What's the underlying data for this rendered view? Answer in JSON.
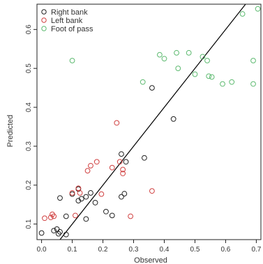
{
  "chart_data": {
    "type": "scatter",
    "xlabel": "Observed",
    "ylabel": "Predicted",
    "xlim": [
      -0.015,
      0.715
    ],
    "ylim": [
      0.06,
      0.665
    ],
    "x_ticks": [
      "0.0",
      "0.1",
      "0.2",
      "0.3",
      "0.4",
      "0.5",
      "0.6",
      "0.7"
    ],
    "y_ticks": [
      "0.1",
      "0.2",
      "0.3",
      "0.4",
      "0.5",
      "0.6"
    ],
    "grid": false,
    "legend_position": "top-left",
    "reference_line": {
      "type": "identity",
      "color": "#000000"
    },
    "series": [
      {
        "name": "Right bank",
        "color": "#222222",
        "points": [
          [
            0.0,
            0.077
          ],
          [
            0.04,
            0.083
          ],
          [
            0.05,
            0.087
          ],
          [
            0.06,
            0.08
          ],
          [
            0.055,
            0.075
          ],
          [
            0.06,
            0.167
          ],
          [
            0.08,
            0.12
          ],
          [
            0.08,
            0.073
          ],
          [
            0.1,
            0.177
          ],
          [
            0.12,
            0.19
          ],
          [
            0.12,
            0.16
          ],
          [
            0.13,
            0.165
          ],
          [
            0.145,
            0.17
          ],
          [
            0.145,
            0.113
          ],
          [
            0.16,
            0.18
          ],
          [
            0.175,
            0.155
          ],
          [
            0.21,
            0.132
          ],
          [
            0.23,
            0.122
          ],
          [
            0.27,
            0.178
          ],
          [
            0.26,
            0.17
          ],
          [
            0.26,
            0.28
          ],
          [
            0.275,
            0.26
          ],
          [
            0.335,
            0.27
          ],
          [
            0.36,
            0.45
          ],
          [
            0.43,
            0.37
          ]
        ]
      },
      {
        "name": "Left bank",
        "color": "#d04040",
        "points": [
          [
            0.01,
            0.115
          ],
          [
            0.03,
            0.117
          ],
          [
            0.035,
            0.125
          ],
          [
            0.04,
            0.12
          ],
          [
            0.1,
            0.18
          ],
          [
            0.11,
            0.122
          ],
          [
            0.12,
            0.192
          ],
          [
            0.125,
            0.18
          ],
          [
            0.15,
            0.237
          ],
          [
            0.16,
            0.25
          ],
          [
            0.18,
            0.26
          ],
          [
            0.195,
            0.177
          ],
          [
            0.23,
            0.245
          ],
          [
            0.245,
            0.36
          ],
          [
            0.255,
            0.26
          ],
          [
            0.265,
            0.24
          ],
          [
            0.265,
            0.23
          ],
          [
            0.29,
            0.12
          ],
          [
            0.36,
            0.185
          ]
        ]
      },
      {
        "name": "Foot of pass",
        "color": "#5dba70",
        "points": [
          [
            0.1,
            0.52
          ],
          [
            0.33,
            0.465
          ],
          [
            0.385,
            0.535
          ],
          [
            0.4,
            0.525
          ],
          [
            0.44,
            0.54
          ],
          [
            0.445,
            0.5
          ],
          [
            0.48,
            0.54
          ],
          [
            0.5,
            0.485
          ],
          [
            0.525,
            0.53
          ],
          [
            0.54,
            0.52
          ],
          [
            0.545,
            0.48
          ],
          [
            0.555,
            0.478
          ],
          [
            0.59,
            0.46
          ],
          [
            0.62,
            0.465
          ],
          [
            0.655,
            0.64
          ],
          [
            0.69,
            0.52
          ],
          [
            0.69,
            0.46
          ],
          [
            0.705,
            0.653
          ]
        ]
      }
    ]
  }
}
